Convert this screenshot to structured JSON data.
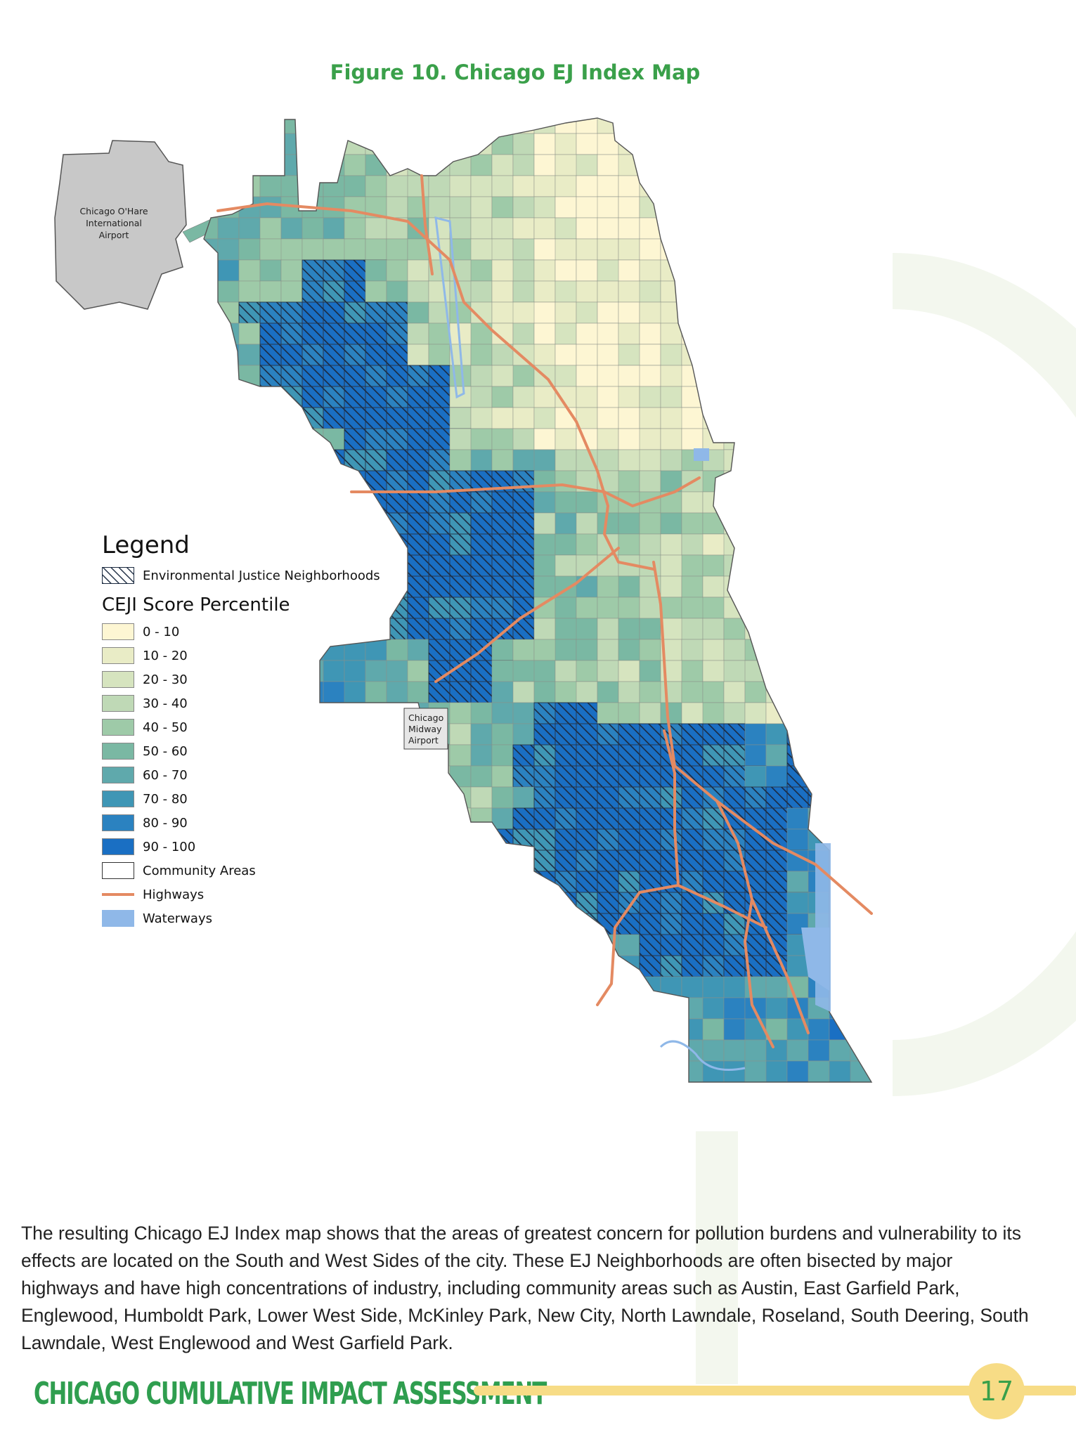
{
  "figure_title": "Figure 10. Chicago EJ Index Map",
  "map": {
    "airports": [
      {
        "name": "Chicago O'Hare International Airport",
        "lines": [
          "Chicago O'Hare",
          "International",
          "Airport"
        ]
      },
      {
        "name": "Chicago Midway Airport",
        "lines": [
          "Chicago",
          "Midway",
          "Airport"
        ]
      }
    ],
    "colors": {
      "p0_10": "#fdf6d3",
      "p10_20": "#e9ecc6",
      "p20_30": "#d6e4bf",
      "p30_40": "#bfd9b6",
      "p40_50": "#9ecaa8",
      "p50_60": "#7ab8a3",
      "p60_70": "#5fa9ac",
      "p70_80": "#3f96b5",
      "p80_90": "#2b82c0",
      "p90_100": "#1a6fc3",
      "highway": "#e48a62",
      "waterway": "#8fb8e8",
      "airport": "#c8c8c8"
    }
  },
  "legend": {
    "title": "Legend",
    "ej_label": "Environmental Justice Neighborhoods",
    "score_title": "CEJI Score Percentile",
    "classes": [
      {
        "label": "0 - 10",
        "color": "#fdf6d3"
      },
      {
        "label": "10 - 20",
        "color": "#e9ecc6"
      },
      {
        "label": "20 - 30",
        "color": "#d6e4bf"
      },
      {
        "label": "30 - 40",
        "color": "#bfd9b6"
      },
      {
        "label": "40 - 50",
        "color": "#9ecaa8"
      },
      {
        "label": "50 - 60",
        "color": "#7ab8a3"
      },
      {
        "label": "60 - 70",
        "color": "#5fa9ac"
      },
      {
        "label": "70 - 80",
        "color": "#3f96b5"
      },
      {
        "label": "80 - 90",
        "color": "#2b82c0"
      },
      {
        "label": "90 - 100",
        "color": "#1a6fc3"
      }
    ],
    "community_label": "Community Areas",
    "highways_label": "Highways",
    "waterways_label": "Waterways"
  },
  "paragraph": "The resulting Chicago EJ Index map shows that the areas of greatest concern for pollution burdens and vulnerability to its effects are located on the South and West Sides of the city. These EJ Neighborhoods are often bisected by major highways and have high concentrations of industry, including community areas such as Austin, East Garfield Park, Englewood, Humboldt Park, Lower West Side, McKinley Park, New City, North Lawndale, Roseland, South Deering, South Lawndale, West Englewood and West Garfield Park.",
  "footer": {
    "title": "CHICAGO CUMULATIVE IMPACT ASSESSMENT",
    "page_number": "17"
  }
}
